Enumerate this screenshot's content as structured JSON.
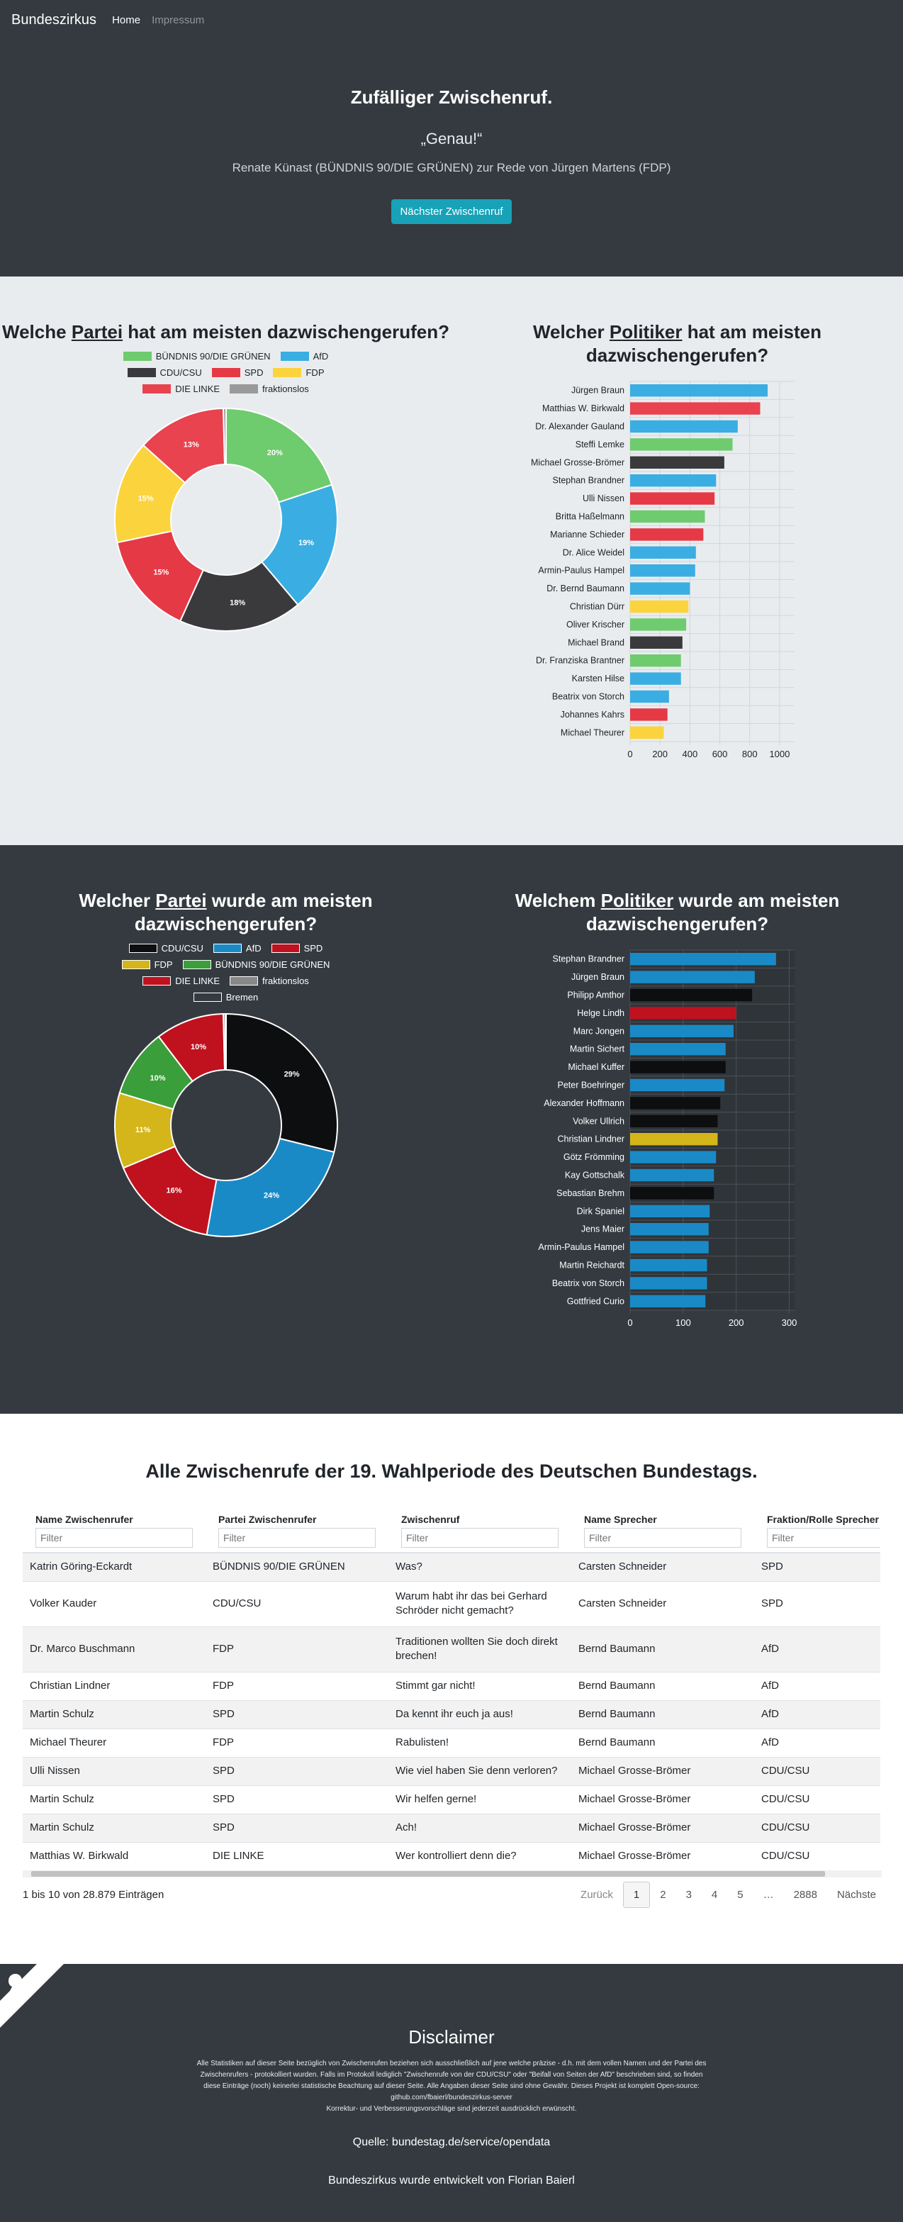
{
  "nav": {
    "brand": "Bundeszirkus",
    "home": "Home",
    "impressum": "Impressum"
  },
  "hero": {
    "title": "Zufälliger Zwischenruf.",
    "quote": "„Genau!“",
    "attribution": "Renate Künast (BÜNDNIS 90/DIE GRÜNEN) zur Rede von Jürgen Martens (FDP)",
    "button": "Nächster Zwischenruf"
  },
  "section1": {
    "left": {
      "title_pre": "Welche ",
      "title_u": "Partei",
      "title_post": " hat am meisten dazwischengerufen?"
    },
    "right": {
      "title_pre": "Welcher ",
      "title_u": "Politiker",
      "title_post": " hat am meisten dazwischengerufen?"
    }
  },
  "section2": {
    "left": {
      "title_pre": "Welcher ",
      "title_u": "Partei",
      "title_post": " wurde am meisten dazwischengerufen?"
    },
    "right": {
      "title_pre": "Welchem ",
      "title_u": "Politiker",
      "title_post": " wurde am meisten dazwischengerufen?"
    }
  },
  "chart_data": [
    {
      "type": "pie",
      "categories": [
        "BÜNDNIS 90/DIE GRÜNEN",
        "AfD",
        "CDU/CSU",
        "SPD",
        "FDP",
        "DIE LINKE",
        "fraktionslos"
      ],
      "values": [
        20,
        19,
        18,
        15,
        15,
        13,
        0.4
      ],
      "labels": [
        "20%",
        "19%",
        "18%",
        "15%",
        "15%",
        "13%",
        ""
      ],
      "colors": [
        "#6ecb6e",
        "#3aaee2",
        "#3a3a3c",
        "#e63946",
        "#fbd33c",
        "#e8434e",
        "#9a9a9a"
      ]
    },
    {
      "type": "bar",
      "orientation": "horizontal",
      "categories": [
        "Jürgen Braun",
        "Matthias W. Birkwald",
        "Dr. Alexander Gauland",
        "Steffi Lemke",
        "Michael Grosse-Brömer",
        "Stephan Brandner",
        "Ulli Nissen",
        "Britta Haßelmann",
        "Marianne Schieder",
        "Dr. Alice Weidel",
        "Armin-Paulus Hampel",
        "Dr. Bernd Baumann",
        "Christian Dürr",
        "Oliver Krischer",
        "Michael Brand",
        "Dr. Franziska Brantner",
        "Karsten Hilse",
        "Beatrix von Storch",
        "Johannes Kahrs",
        "Michael Theurer"
      ],
      "values": [
        920,
        870,
        720,
        685,
        630,
        575,
        565,
        500,
        490,
        440,
        435,
        400,
        390,
        375,
        350,
        340,
        340,
        260,
        250,
        225
      ],
      "colors": [
        "#3aaee2",
        "#e8434e",
        "#3aaee2",
        "#6ecb6e",
        "#3a3a3c",
        "#3aaee2",
        "#e63946",
        "#6ecb6e",
        "#e63946",
        "#3aaee2",
        "#3aaee2",
        "#3aaee2",
        "#fbd33c",
        "#6ecb6e",
        "#3a3a3c",
        "#6ecb6e",
        "#3aaee2",
        "#3aaee2",
        "#e63946",
        "#fbd33c"
      ],
      "xlim": [
        0,
        1100
      ],
      "xticks": [
        0,
        200,
        400,
        600,
        800,
        1000
      ]
    },
    {
      "type": "pie",
      "categories": [
        "CDU/CSU",
        "AfD",
        "SPD",
        "FDP",
        "BÜNDNIS 90/DIE GRÜNEN",
        "DIE LINKE",
        "fraktionslos",
        "Bremen"
      ],
      "values": [
        29,
        24,
        16,
        11,
        10,
        10,
        0.3,
        0.1
      ],
      "labels": [
        "29%",
        "24%",
        "16%",
        "11%",
        "10%",
        "10%",
        "",
        ""
      ],
      "colors": [
        "#0d0e10",
        "#1a8ac6",
        "#c0111f",
        "#d4b51a",
        "#3a9e3a",
        "#c0111f",
        "#888888",
        "#343a40"
      ]
    },
    {
      "type": "bar",
      "orientation": "horizontal",
      "categories": [
        "Stephan Brandner",
        "Jürgen Braun",
        "Philipp Amthor",
        "Helge Lindh",
        "Marc Jongen",
        "Martin Sichert",
        "Michael Kuffer",
        "Peter Boehringer",
        "Alexander Hoffmann",
        "Volker Ullrich",
        "Christian Lindner",
        "Götz Frömming",
        "Kay Gottschalk",
        "Sebastian Brehm",
        "Dirk Spaniel",
        "Jens Maier",
        "Armin-Paulus Hampel",
        "Martin Reichardt",
        "Beatrix von Storch",
        "Gottfried Curio"
      ],
      "values": [
        275,
        235,
        230,
        200,
        195,
        180,
        180,
        178,
        170,
        165,
        165,
        162,
        158,
        158,
        150,
        148,
        148,
        145,
        145,
        142
      ],
      "colors": [
        "#1a8ac6",
        "#1a8ac6",
        "#0d0e10",
        "#c0111f",
        "#1a8ac6",
        "#1a8ac6",
        "#0d0e10",
        "#1a8ac6",
        "#0d0e10",
        "#0d0e10",
        "#d4b51a",
        "#1a8ac6",
        "#1a8ac6",
        "#0d0e10",
        "#1a8ac6",
        "#1a8ac6",
        "#1a8ac6",
        "#1a8ac6",
        "#1a8ac6",
        "#1a8ac6"
      ],
      "xlim": [
        0,
        310
      ],
      "xticks": [
        0,
        100,
        200,
        300
      ]
    }
  ],
  "table": {
    "title": "Alle Zwischenrufe der 19. Wahlperiode des Deutschen Bundestags.",
    "headers": [
      "Name Zwischenrufer",
      "Partei Zwischenrufer",
      "Zwischenruf",
      "Name Sprecher",
      "Fraktion/Rolle Sprecher"
    ],
    "filter_placeholder": "Filter",
    "rows": [
      [
        "Katrin Göring-Eckardt",
        "BÜNDNIS 90/DIE GRÜNEN",
        "Was?",
        "Carsten Schneider",
        "SPD"
      ],
      [
        "Volker Kauder",
        "CDU/CSU",
        "Warum habt ihr das bei Gerhard Schröder nicht gemacht?",
        "Carsten Schneider",
        "SPD"
      ],
      [
        "Dr. Marco Buschmann",
        "FDP",
        "Traditionen wollten Sie doch direkt brechen!",
        "Bernd Baumann",
        "AfD"
      ],
      [
        "Christian Lindner",
        "FDP",
        "Stimmt gar nicht!",
        "Bernd Baumann",
        "AfD"
      ],
      [
        "Martin Schulz",
        "SPD",
        "Da kennt ihr euch ja aus!",
        "Bernd Baumann",
        "AfD"
      ],
      [
        "Michael Theurer",
        "FDP",
        "Rabulisten!",
        "Bernd Baumann",
        "AfD"
      ],
      [
        "Ulli Nissen",
        "SPD",
        "Wie viel haben Sie denn verloren?",
        "Michael Grosse-Brömer",
        "CDU/CSU"
      ],
      [
        "Martin Schulz",
        "SPD",
        "Wir helfen gerne!",
        "Michael Grosse-Brömer",
        "CDU/CSU"
      ],
      [
        "Martin Schulz",
        "SPD",
        "Ach!",
        "Michael Grosse-Brömer",
        "CDU/CSU"
      ],
      [
        "Matthias W. Birkwald",
        "DIE LINKE",
        "Wer kontrolliert denn die?",
        "Michael Grosse-Brömer",
        "CDU/CSU"
      ]
    ],
    "info": "1 bis 10 von 28.879 Einträgen",
    "pager": {
      "prev": "Zurück",
      "pages": [
        "1",
        "2",
        "3",
        "4",
        "5",
        "…",
        "2888"
      ],
      "next": "Nächste"
    }
  },
  "footer": {
    "title": "Disclaimer",
    "text1": "Alle Statistiken auf dieser Seite bezüglich von Zwischenrufen beziehen sich ausschließlich auf jene welche präzise - d.h. mit dem vollen Namen und der Partei des Zwischenrufers - protokolliert wurden. Falls im Protokoll lediglich \"Zwischenrufe von der CDU/CSU\" oder \"Beifall von Seiten der AfD\" beschrieben sind, so finden diese Einträge (noch) keinerlei statistische Beachtung auf dieser Seite. Alle Angaben dieser Seite sind ohne Gewähr. Dieses Projekt ist komplett Open-source: github.com/fbaierl/bundeszirkus-server",
    "text2": "Korrektur- und Verbesserungsvorschläge sind jederzeit ausdrücklich erwünscht.",
    "source": "Quelle: bundestag.de/service/opendata",
    "dev": "Bundeszirkus wurde entwickelt von Florian Baierl"
  }
}
